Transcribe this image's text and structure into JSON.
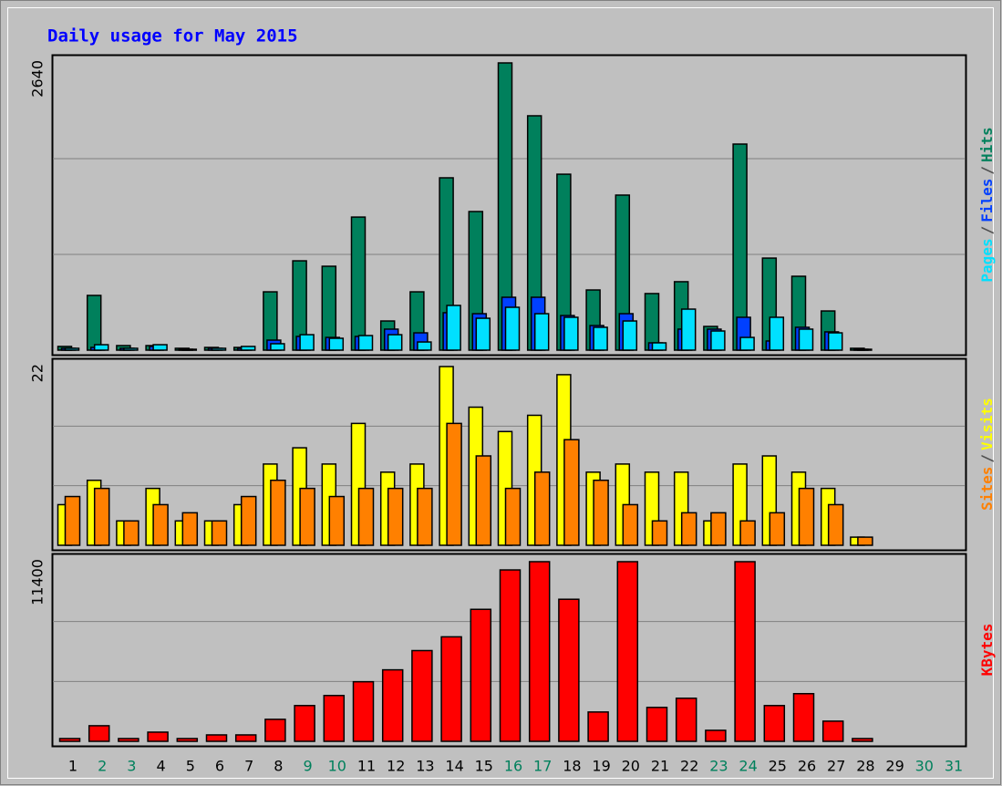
{
  "chart_data": [
    {
      "type": "bar",
      "title": "Daily usage for May 2015",
      "ylim": [
        0,
        2640
      ],
      "yticks": [
        2640
      ],
      "grid": true,
      "legend_separator": "/",
      "series": [
        {
          "name": "Hits",
          "color": "#00805c",
          "values": [
            34,
            503,
            42,
            42,
            17,
            25,
            25,
            536,
            821,
            771,
            1223,
            268,
            536,
            1584,
            1274,
            2640,
            2154,
            1617,
            553,
            1425,
            520,
            629,
            218,
            1894,
            846,
            679,
            360,
            17,
            0,
            0,
            0
          ]
        },
        {
          "name": "Files",
          "color": "#0040ff",
          "values": [
            17,
            25,
            17,
            34,
            8,
            17,
            17,
            92,
            126,
            117,
            126,
            193,
            159,
            344,
            335,
            486,
            486,
            318,
            226,
            335,
            67,
            193,
            193,
            302,
            84,
            210,
            168,
            8,
            0,
            0,
            0
          ]
        },
        {
          "name": "Pages",
          "color": "#00e0ff",
          "values": [
            17,
            50,
            17,
            50,
            8,
            17,
            34,
            59,
            142,
            109,
            134,
            142,
            75,
            411,
            293,
            394,
            335,
            302,
            210,
            268,
            67,
            377,
            176,
            117,
            302,
            193,
            159,
            8,
            0,
            0,
            0
          ]
        }
      ]
    },
    {
      "type": "bar",
      "ylim": [
        0,
        22
      ],
      "yticks": [
        22
      ],
      "grid": true,
      "legend_separator": "/",
      "series": [
        {
          "name": "Visits",
          "color": "#ffff00",
          "values": [
            5,
            8,
            3,
            7,
            3,
            3,
            5,
            10,
            12,
            10,
            15,
            9,
            10,
            22,
            17,
            14,
            16,
            21,
            9,
            10,
            9,
            9,
            3,
            10,
            11,
            9,
            7,
            1,
            0,
            0,
            0
          ]
        },
        {
          "name": "Sites",
          "color": "#ff8000",
          "values": [
            6,
            7,
            3,
            5,
            4,
            3,
            6,
            8,
            7,
            6,
            7,
            7,
            7,
            15,
            11,
            7,
            9,
            13,
            8,
            5,
            3,
            4,
            4,
            3,
            4,
            7,
            5,
            1,
            0,
            0,
            0
          ]
        }
      ]
    },
    {
      "type": "bar",
      "ylim": [
        0,
        11400
      ],
      "yticks": [
        11400
      ],
      "grid": true,
      "categories": [
        "1",
        "2",
        "3",
        "4",
        "5",
        "6",
        "7",
        "8",
        "9",
        "10",
        "11",
        "12",
        "13",
        "14",
        "15",
        "16",
        "17",
        "18",
        "19",
        "20",
        "21",
        "22",
        "23",
        "24",
        "25",
        "26",
        "27",
        "28",
        "29",
        "30",
        "31"
      ],
      "category_colors": [
        "#000000",
        "#00805c",
        "#00805c",
        "#000000",
        "#000000",
        "#000000",
        "#000000",
        "#000000",
        "#00805c",
        "#00805c",
        "#000000",
        "#000000",
        "#000000",
        "#000000",
        "#000000",
        "#00805c",
        "#00805c",
        "#000000",
        "#000000",
        "#000000",
        "#000000",
        "#000000",
        "#00805c",
        "#00805c",
        "#000000",
        "#000000",
        "#000000",
        "#000000",
        "#000000",
        "#00805c",
        "#00805c"
      ],
      "series": [
        {
          "name": "KBytes",
          "color": "#ff0000",
          "values": [
            175,
            989,
            175,
            582,
            175,
            407,
            407,
            1396,
            2269,
            2908,
            3781,
            4537,
            5758,
            6631,
            8376,
            10877,
            11400,
            9015,
            1861,
            11400,
            2152,
            2734,
            698,
            11400,
            2269,
            3024,
            1280,
            175,
            0,
            0,
            0
          ]
        }
      ]
    }
  ]
}
